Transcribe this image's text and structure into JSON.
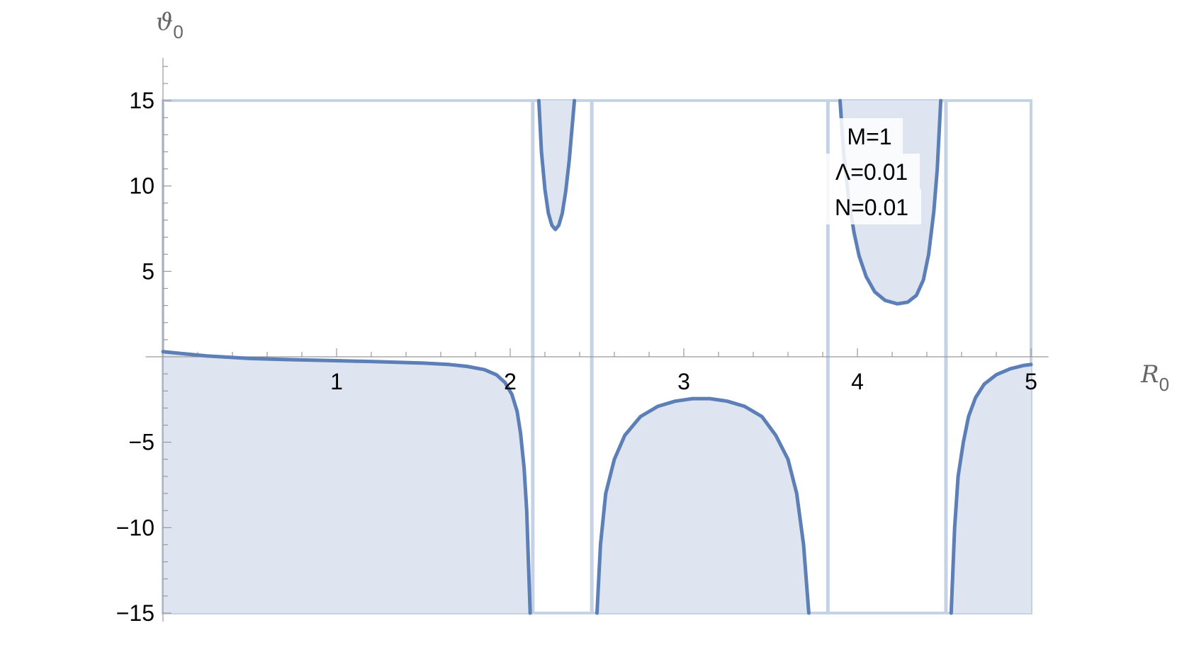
{
  "chart_data": {
    "type": "line",
    "xlabel": {
      "main": "R",
      "sub": "0"
    },
    "ylabel": {
      "main": "ϑ",
      "sub": "0"
    },
    "xlim": [
      0,
      5.1
    ],
    "ylim": [
      -15.5,
      17.5
    ],
    "plot_range_y": [
      -15,
      15
    ],
    "x_ticks": [
      1,
      2,
      3,
      4,
      5
    ],
    "x_tick_labels": [
      "1",
      "2",
      "3",
      "4",
      "5"
    ],
    "y_ticks": [
      -15,
      -10,
      -5,
      5,
      10,
      15
    ],
    "y_tick_labels": [
      "−15",
      "−10",
      "−5",
      "5",
      "10",
      "15"
    ],
    "grid": false,
    "legend_labels": [
      "M=1",
      "Λ=0.01",
      "N=0.01"
    ],
    "legend_position": "top-right",
    "colors": {
      "curve": "#5b7fb6",
      "fill": "#dfe5f0",
      "boundary": "#c5d2e6"
    },
    "vertical_asymptotes": [
      2.13,
      2.47,
      3.83,
      4.51
    ],
    "series": [
      {
        "branch": 1,
        "fill_to": "bottom",
        "points": [
          [
            0,
            0.3
          ],
          [
            0.25,
            0.05
          ],
          [
            0.5,
            -0.1
          ],
          [
            0.75,
            -0.17
          ],
          [
            1.0,
            -0.23
          ],
          [
            1.25,
            -0.29
          ],
          [
            1.5,
            -0.37
          ],
          [
            1.65,
            -0.45
          ],
          [
            1.75,
            -0.56
          ],
          [
            1.85,
            -0.75
          ],
          [
            1.92,
            -1.05
          ],
          [
            1.97,
            -1.5
          ],
          [
            2.01,
            -2.2
          ],
          [
            2.04,
            -3.2
          ],
          [
            2.06,
            -4.5
          ],
          [
            2.08,
            -6.5
          ],
          [
            2.095,
            -9
          ],
          [
            2.105,
            -12
          ],
          [
            2.115,
            -15
          ]
        ]
      },
      {
        "branch": 2,
        "fill_to": "top",
        "points": [
          [
            2.165,
            15
          ],
          [
            2.18,
            12
          ],
          [
            2.2,
            9.8
          ],
          [
            2.22,
            8.4
          ],
          [
            2.24,
            7.7
          ],
          [
            2.26,
            7.45
          ],
          [
            2.28,
            7.7
          ],
          [
            2.3,
            8.4
          ],
          [
            2.32,
            9.7
          ],
          [
            2.34,
            11.5
          ],
          [
            2.37,
            15
          ]
        ]
      },
      {
        "branch": 3,
        "fill_to": "bottom",
        "points": [
          [
            2.5,
            -15
          ],
          [
            2.52,
            -11
          ],
          [
            2.55,
            -8
          ],
          [
            2.6,
            -6
          ],
          [
            2.66,
            -4.6
          ],
          [
            2.75,
            -3.5
          ],
          [
            2.85,
            -2.9
          ],
          [
            2.95,
            -2.6
          ],
          [
            3.05,
            -2.45
          ],
          [
            3.15,
            -2.45
          ],
          [
            3.25,
            -2.6
          ],
          [
            3.35,
            -2.9
          ],
          [
            3.45,
            -3.5
          ],
          [
            3.53,
            -4.6
          ],
          [
            3.6,
            -6
          ],
          [
            3.65,
            -8
          ],
          [
            3.69,
            -11
          ],
          [
            3.72,
            -15
          ]
        ]
      },
      {
        "branch": 4,
        "fill_to": "top",
        "points": [
          [
            3.9,
            15
          ],
          [
            3.92,
            12
          ],
          [
            3.95,
            9.2
          ],
          [
            3.98,
            7.3
          ],
          [
            4.01,
            5.9
          ],
          [
            4.05,
            4.7
          ],
          [
            4.1,
            3.8
          ],
          [
            4.16,
            3.3
          ],
          [
            4.23,
            3.1
          ],
          [
            4.29,
            3.2
          ],
          [
            4.34,
            3.6
          ],
          [
            4.38,
            4.5
          ],
          [
            4.41,
            6
          ],
          [
            4.44,
            8.5
          ],
          [
            4.46,
            11
          ],
          [
            4.48,
            15
          ]
        ]
      },
      {
        "branch": 5,
        "fill_to": "bottom",
        "points": [
          [
            4.54,
            -15
          ],
          [
            4.56,
            -10
          ],
          [
            4.58,
            -7
          ],
          [
            4.61,
            -5
          ],
          [
            4.64,
            -3.5
          ],
          [
            4.68,
            -2.4
          ],
          [
            4.73,
            -1.6
          ],
          [
            4.8,
            -1.05
          ],
          [
            4.88,
            -0.7
          ],
          [
            4.96,
            -0.5
          ],
          [
            5.0,
            -0.45
          ]
        ]
      }
    ]
  }
}
